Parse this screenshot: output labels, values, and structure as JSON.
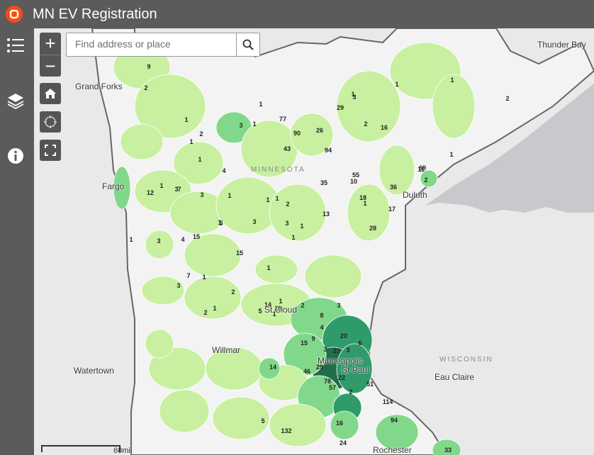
{
  "app": {
    "title": "MN EV Registration"
  },
  "search": {
    "placeholder": "Find address or place"
  },
  "toolbar": {
    "zoom_in": "+",
    "zoom_out": "−"
  },
  "icons": {
    "logo": "app-logo-icon",
    "legend": "list-icon",
    "layers": "layers-icon",
    "info": "info-icon",
    "home": "home-icon",
    "locate": "locate-icon",
    "fullscreen": "fullscreen-icon",
    "search": "search-icon"
  },
  "colors": {
    "header": "#5b5b5b",
    "logo": "#ff4a14",
    "light": "#c8f0a0",
    "mid": "#82d88a",
    "dark": "#2f9b6a",
    "darkest": "#1f6e4a",
    "lake": "#c8c8cd"
  },
  "scale": {
    "label": "60mi"
  },
  "places": [
    {
      "name": "Grand Forks"
    },
    {
      "name": "Fargo"
    },
    {
      "name": "Duluth"
    },
    {
      "name": "St Cloud"
    },
    {
      "name": "Willmar"
    },
    {
      "name": "Minneapolis"
    },
    {
      "name": "St Paul"
    },
    {
      "name": "Watertown"
    },
    {
      "name": "Eau Claire"
    },
    {
      "name": "Rochester"
    },
    {
      "name": "Thunder Bay"
    }
  ],
  "regions": [
    {
      "name": "MINNESOTA"
    },
    {
      "name": "WISCONSIN"
    }
  ],
  "counts": [
    "9",
    "2",
    "1",
    "1",
    "2",
    "1",
    "1",
    "3",
    "1",
    "3",
    "2",
    "1",
    "16",
    "1",
    "1",
    "2",
    "1",
    "11",
    "2",
    "1",
    "4",
    "7",
    "1",
    "3",
    "12",
    "3",
    "1",
    "1",
    "1",
    "3",
    "2",
    "3",
    "1",
    "1",
    "3",
    "1",
    "5",
    "4",
    "1",
    "15",
    "1",
    "15",
    "1",
    "7",
    "2",
    "2",
    "3",
    "1",
    "10",
    "1",
    "1",
    "14",
    "5",
    "2",
    "3",
    "8",
    "4",
    "20",
    "9",
    "27",
    "6",
    "3",
    "3",
    "15",
    "14",
    "29",
    "46",
    "78",
    "22",
    "2",
    "57",
    "51",
    "114",
    "94",
    "24",
    "5",
    "16",
    "132",
    "33",
    "69",
    "94",
    "43",
    "90",
    "77",
    "29",
    "26",
    "35",
    "55",
    "28",
    "17",
    "18",
    "10",
    "36",
    "13",
    "1",
    "1",
    "1",
    "6",
    "1",
    "2"
  ]
}
